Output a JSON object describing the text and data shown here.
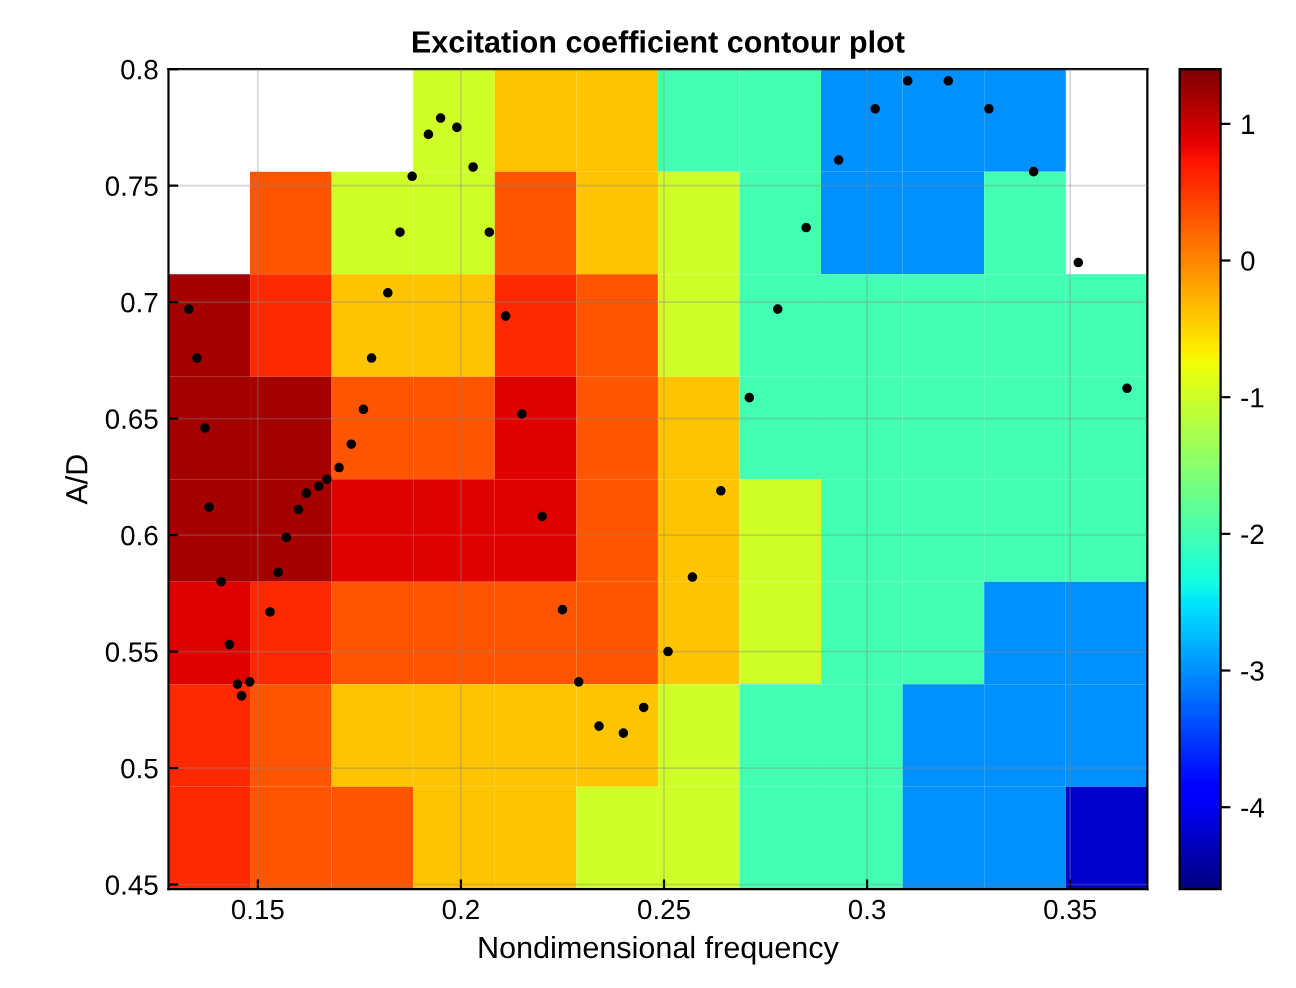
{
  "chart_data": [
    {
      "type": "heatmap",
      "title": "Excitation coefficient contour plot",
      "xlabel": "Nondimensional frequency",
      "ylabel": "A/D",
      "xlim": [
        0.128,
        0.369
      ],
      "ylim": [
        0.448,
        0.8
      ],
      "xticks": [
        0.15,
        0.2,
        0.25,
        0.3,
        0.35
      ],
      "yticks": [
        0.45,
        0.5,
        0.55,
        0.6,
        0.65,
        0.7,
        0.75,
        0.8
      ],
      "clim": [
        -4.6,
        1.4
      ],
      "cticks": [
        -4,
        -3,
        -2,
        -1,
        0,
        1
      ],
      "grid": true,
      "cells": [
        [
          null,
          null,
          null,
          -1,
          -0.4,
          -0.4,
          -2,
          -2,
          -3,
          -3,
          -3,
          null
        ],
        [
          null,
          0.3,
          -1,
          -1,
          0.3,
          -0.4,
          -1,
          -2,
          -3,
          -3,
          -2,
          null
        ],
        [
          1.2,
          0.6,
          -0.4,
          -0.4,
          0.6,
          0.3,
          -1,
          -2,
          -2,
          -2,
          -2,
          -2
        ],
        [
          1.2,
          1.2,
          0.3,
          0.3,
          0.9,
          0.3,
          -0.4,
          -2,
          -2,
          -2,
          -2,
          -2
        ],
        [
          1.2,
          1.2,
          0.9,
          0.9,
          0.9,
          0.3,
          -0.4,
          -1,
          -2,
          -2,
          -2,
          -2
        ],
        [
          0.9,
          0.6,
          0.3,
          0.3,
          0.3,
          0.3,
          -0.4,
          -1,
          -2,
          -2,
          -3,
          -3
        ],
        [
          0.6,
          0.3,
          -0.4,
          -0.4,
          -0.4,
          -0.4,
          -1,
          -2,
          -2,
          -3,
          -3,
          -3
        ],
        [
          0.6,
          0.3,
          0.3,
          -0.4,
          -0.4,
          -1,
          -1,
          -2,
          -2,
          -3,
          -3,
          -4.2
        ]
      ],
      "series": [
        {
          "type": "scatter",
          "color": "#000000",
          "marker": "circle",
          "x": [
            0.133,
            0.135,
            0.137,
            0.138,
            0.141,
            0.143,
            0.145,
            0.146,
            0.148,
            0.153,
            0.155,
            0.157,
            0.16,
            0.162,
            0.165,
            0.167,
            0.17,
            0.173,
            0.176,
            0.178,
            0.182,
            0.185,
            0.188,
            0.192,
            0.195,
            0.199,
            0.203,
            0.207,
            0.211,
            0.215,
            0.22,
            0.225,
            0.229,
            0.234,
            0.24,
            0.245,
            0.251,
            0.257,
            0.264,
            0.271,
            0.278,
            0.285,
            0.293,
            0.302,
            0.31,
            0.32,
            0.33,
            0.341,
            0.352,
            0.364
          ],
          "values": [
            0.697,
            0.676,
            0.646,
            0.612,
            0.58,
            0.553,
            0.536,
            0.531,
            0.537,
            0.567,
            0.584,
            0.599,
            0.611,
            0.618,
            0.621,
            0.624,
            0.629,
            0.639,
            0.654,
            0.676,
            0.704,
            0.73,
            0.754,
            0.772,
            0.779,
            0.775,
            0.758,
            0.73,
            0.694,
            0.652,
            0.608,
            0.568,
            0.537,
            0.518,
            0.515,
            0.526,
            0.55,
            0.582,
            0.619,
            0.659,
            0.697,
            0.732,
            0.761,
            0.783,
            0.795,
            0.795,
            0.783,
            0.756,
            0.717,
            0.663
          ]
        }
      ]
    }
  ]
}
